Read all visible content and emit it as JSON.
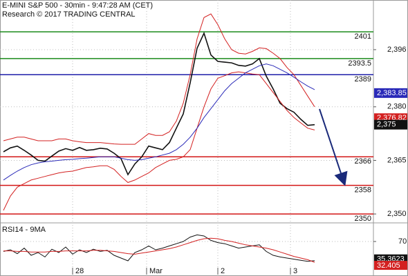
{
  "chart_data": {
    "type": "line",
    "title": "E-MINI S&P 500 - 30min - 9:47:28 AM (CET)",
    "subtitle": "Research © 2017 TRADING CENTRAL",
    "x": [
      0,
      1,
      2,
      3,
      4,
      5,
      6,
      7,
      8,
      9,
      10,
      11,
      12,
      13,
      14,
      15,
      16,
      17,
      18,
      19,
      20,
      21,
      22,
      23,
      24,
      25,
      26,
      27,
      28,
      29,
      30,
      31,
      32,
      33,
      34,
      35,
      36,
      37,
      38,
      39,
      40,
      41,
      42,
      43,
      44,
      45
    ],
    "xlim": [
      -0.5,
      53.5
    ],
    "xticks": [
      {
        "value": 10,
        "label": "28"
      },
      {
        "value": 20.7,
        "label": "Mar"
      },
      {
        "value": 31,
        "label": "2"
      },
      {
        "value": 41.5,
        "label": "3"
      }
    ],
    "ylim": [
      2347.7,
      2409.9
    ],
    "yticks": [
      {
        "value": 2396,
        "label": "2,396"
      },
      {
        "value": 2380,
        "label": "2,380"
      },
      {
        "value": 2365,
        "label": "2,365"
      },
      {
        "value": 2350,
        "label": "2,350"
      }
    ],
    "grid": true,
    "series": [
      {
        "color": "#111111",
        "values": [
          2367.4,
          2368.5,
          2369,
          2367.8,
          2366.5,
          2365,
          2364.8,
          2366.2,
          2367.6,
          2368.3,
          2367.8,
          2368.6,
          2367.8,
          2368,
          2368.4,
          2368.2,
          2367,
          2365.5,
          2361,
          2364,
          2366,
          2369,
          2368.5,
          2368,
          2370,
          2374,
          2378,
          2386.7,
          2396.4,
          2400.6,
          2394.5,
          2392.7,
          2392.5,
          2392.3,
          2391.6,
          2391.4,
          2392,
          2393.5,
          2388.6,
          2385,
          2381,
          2379.5,
          2378.5,
          2376.5,
          2374.8,
          2375
        ]
      },
      {
        "color": "#d32020",
        "values": [
          2370.5,
          2371,
          2371.5,
          2371.5,
          2371,
          2370.5,
          2370.5,
          2370.5,
          2371,
          2371,
          2370.5,
          2370.2,
          2370,
          2370,
          2370,
          2369.8,
          2369.6,
          2369.5,
          2369.5,
          2369.5,
          2371,
          2372.5,
          2372,
          2372,
          2373,
          2376,
          2381,
          2389,
          2399,
          2405,
          2406,
          2403,
          2399,
          2396,
          2395,
          2394.8,
          2395.5,
          2396.5,
          2396.3,
          2395,
          2393.5,
          2391,
          2389,
          2386,
          2383,
          2380
        ]
      },
      {
        "color": "#d32020",
        "values": [
          2351,
          2355,
          2357.5,
          2358.5,
          2359.5,
          2360,
          2360.5,
          2361,
          2361.5,
          2361.8,
          2362,
          2362.5,
          2363,
          2363.2,
          2363.5,
          2363.5,
          2362.5,
          2360.5,
          2358.8,
          2359.5,
          2360.5,
          2361.5,
          2363,
          2364,
          2365,
          2365.3,
          2366,
          2368,
          2374,
          2380,
          2385,
          2388,
          2388.7,
          2389.5,
          2389.8,
          2389.5,
          2389.2,
          2389,
          2386.5,
          2384,
          2381.5,
          2379,
          2377,
          2375.5,
          2374,
          2373.5
        ]
      },
      {
        "color": "#2a2ab8",
        "values": [
          2359.5,
          2360.8,
          2362,
          2363,
          2363.8,
          2364.3,
          2364.6,
          2364.8,
          2365,
          2365.2,
          2365.3,
          2365.5,
          2365.6,
          2365.8,
          2366,
          2366,
          2366,
          2365.6,
          2365.2,
          2365,
          2365.2,
          2365.6,
          2366,
          2366.5,
          2367,
          2368,
          2369.5,
          2371.5,
          2374,
          2377,
          2379.5,
          2382,
          2384.5,
          2386.5,
          2388,
          2389.5,
          2390.5,
          2391.5,
          2392,
          2391.5,
          2390.5,
          2389.5,
          2388.3,
          2387,
          2385.8,
          2384.8
        ]
      }
    ],
    "levels": [
      {
        "value": 2401,
        "color": "#1a8a1a"
      },
      {
        "value": 2393.5,
        "color": "#1a8a1a"
      },
      {
        "value": 2389,
        "color": "#1c1ca8"
      },
      {
        "value": 2366,
        "color": "#d31515"
      },
      {
        "value": 2358,
        "color": "#d31515"
      },
      {
        "value": 2350,
        "color": "#d31515"
      }
    ],
    "last_labels": [
      {
        "value": 2383.85,
        "label": "2,383.85",
        "color": "#2a2ab8"
      },
      {
        "value": 2376.82,
        "label": "2,376.82",
        "color": "#d32020"
      },
      {
        "value": 2375,
        "label": "2,375",
        "color": "#111111"
      }
    ],
    "rsi": {
      "title": "RSI14 - 9MA",
      "ylim": [
        10,
        100
      ],
      "yticks": [
        70
      ],
      "series": [
        {
          "color": "#111111",
          "values": [
            52,
            55,
            48,
            58,
            45,
            50,
            42,
            56,
            50,
            60,
            47,
            55,
            50,
            56,
            52,
            54,
            45,
            40,
            35,
            50,
            55,
            62,
            55,
            58,
            62,
            66,
            70,
            78,
            82,
            80,
            72,
            68,
            66,
            62,
            58,
            60,
            62,
            64,
            52,
            45,
            42,
            40,
            38,
            36,
            34,
            35.3623
          ]
        },
        {
          "color": "#d32020",
          "values": [
            53,
            53,
            52,
            52,
            51,
            51,
            51,
            52,
            52,
            53,
            53,
            53,
            53,
            54,
            54,
            53,
            52,
            50,
            48,
            47,
            49,
            51,
            53,
            55,
            57,
            60,
            64,
            68,
            72,
            75,
            76,
            75,
            72,
            70,
            67,
            64,
            62,
            60,
            58,
            55,
            51,
            47,
            43,
            40,
            37,
            32.405
          ]
        }
      ],
      "last_labels": [
        {
          "value": 35.3623,
          "color": "#111111"
        },
        {
          "value": 32.405,
          "color": "#d32020"
        }
      ]
    }
  }
}
